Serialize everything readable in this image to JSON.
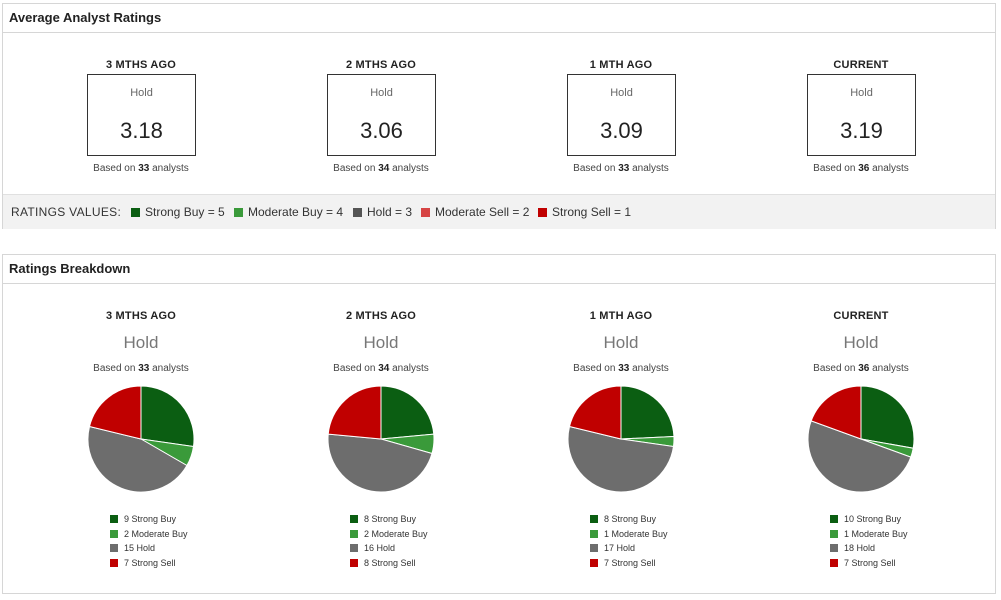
{
  "colors": {
    "strong_buy": "#0b5e12",
    "moderate_buy": "#3a9a3a",
    "hold": "#6d6d6d",
    "moderate_sell": "#d64444",
    "strong_sell": "#c00000"
  },
  "average_ratings": {
    "title": "Average Analyst Ratings",
    "columns": [
      {
        "period": "3 MTHS AGO",
        "rating": "Hold",
        "value": "3.18",
        "based_prefix": "Based on",
        "analysts": "33",
        "based_suffix": "analysts"
      },
      {
        "period": "2 MTHS AGO",
        "rating": "Hold",
        "value": "3.06",
        "based_prefix": "Based on",
        "analysts": "34",
        "based_suffix": "analysts"
      },
      {
        "period": "1 MTH AGO",
        "rating": "Hold",
        "value": "3.09",
        "based_prefix": "Based on",
        "analysts": "33",
        "based_suffix": "analysts"
      },
      {
        "period": "CURRENT",
        "rating": "Hold",
        "value": "3.19",
        "based_prefix": "Based on",
        "analysts": "36",
        "based_suffix": "analysts"
      }
    ],
    "values_title": "RATINGS VALUES:",
    "values": [
      {
        "label": "Strong Buy = 5",
        "color": "#0b5e12"
      },
      {
        "label": "Moderate Buy = 4",
        "color": "#3a9a3a"
      },
      {
        "label": "Hold = 3",
        "color": "#555555"
      },
      {
        "label": "Moderate Sell = 2",
        "color": "#d64444"
      },
      {
        "label": "Strong Sell = 1",
        "color": "#c00000"
      }
    ]
  },
  "breakdown": {
    "title": "Ratings Breakdown",
    "columns": [
      {
        "period": "3 MTHS AGO",
        "rating": "Hold",
        "based_prefix": "Based on",
        "analysts": "33",
        "based_suffix": "analysts",
        "legend": [
          "9 Strong Buy",
          "2 Moderate Buy",
          "15 Hold",
          "7 Strong Sell"
        ]
      },
      {
        "period": "2 MTHS AGO",
        "rating": "Hold",
        "based_prefix": "Based on",
        "analysts": "34",
        "based_suffix": "analysts",
        "legend": [
          "8 Strong Buy",
          "2 Moderate Buy",
          "16 Hold",
          "8 Strong Sell"
        ]
      },
      {
        "period": "1 MTH AGO",
        "rating": "Hold",
        "based_prefix": "Based on",
        "analysts": "33",
        "based_suffix": "analysts",
        "legend": [
          "8 Strong Buy",
          "1 Moderate Buy",
          "17 Hold",
          "7 Strong Sell"
        ]
      },
      {
        "period": "CURRENT",
        "rating": "Hold",
        "based_prefix": "Based on",
        "analysts": "36",
        "based_suffix": "analysts",
        "legend": [
          "10 Strong Buy",
          "1 Moderate Buy",
          "18 Hold",
          "7 Strong Sell"
        ]
      }
    ]
  },
  "chart_data": [
    {
      "type": "pie",
      "title": "3 MTHS AGO",
      "categories": [
        "Strong Buy",
        "Moderate Buy",
        "Hold",
        "Strong Sell"
      ],
      "values": [
        9,
        2,
        15,
        7
      ],
      "colors": [
        "#0b5e12",
        "#3a9a3a",
        "#6d6d6d",
        "#c00000"
      ]
    },
    {
      "type": "pie",
      "title": "2 MTHS AGO",
      "categories": [
        "Strong Buy",
        "Moderate Buy",
        "Hold",
        "Strong Sell"
      ],
      "values": [
        8,
        2,
        16,
        8
      ],
      "colors": [
        "#0b5e12",
        "#3a9a3a",
        "#6d6d6d",
        "#c00000"
      ]
    },
    {
      "type": "pie",
      "title": "1 MTH AGO",
      "categories": [
        "Strong Buy",
        "Moderate Buy",
        "Hold",
        "Strong Sell"
      ],
      "values": [
        8,
        1,
        17,
        7
      ],
      "colors": [
        "#0b5e12",
        "#3a9a3a",
        "#6d6d6d",
        "#c00000"
      ]
    },
    {
      "type": "pie",
      "title": "CURRENT",
      "categories": [
        "Strong Buy",
        "Moderate Buy",
        "Hold",
        "Strong Sell"
      ],
      "values": [
        10,
        1,
        18,
        7
      ],
      "colors": [
        "#0b5e12",
        "#3a9a3a",
        "#6d6d6d",
        "#c00000"
      ]
    }
  ]
}
